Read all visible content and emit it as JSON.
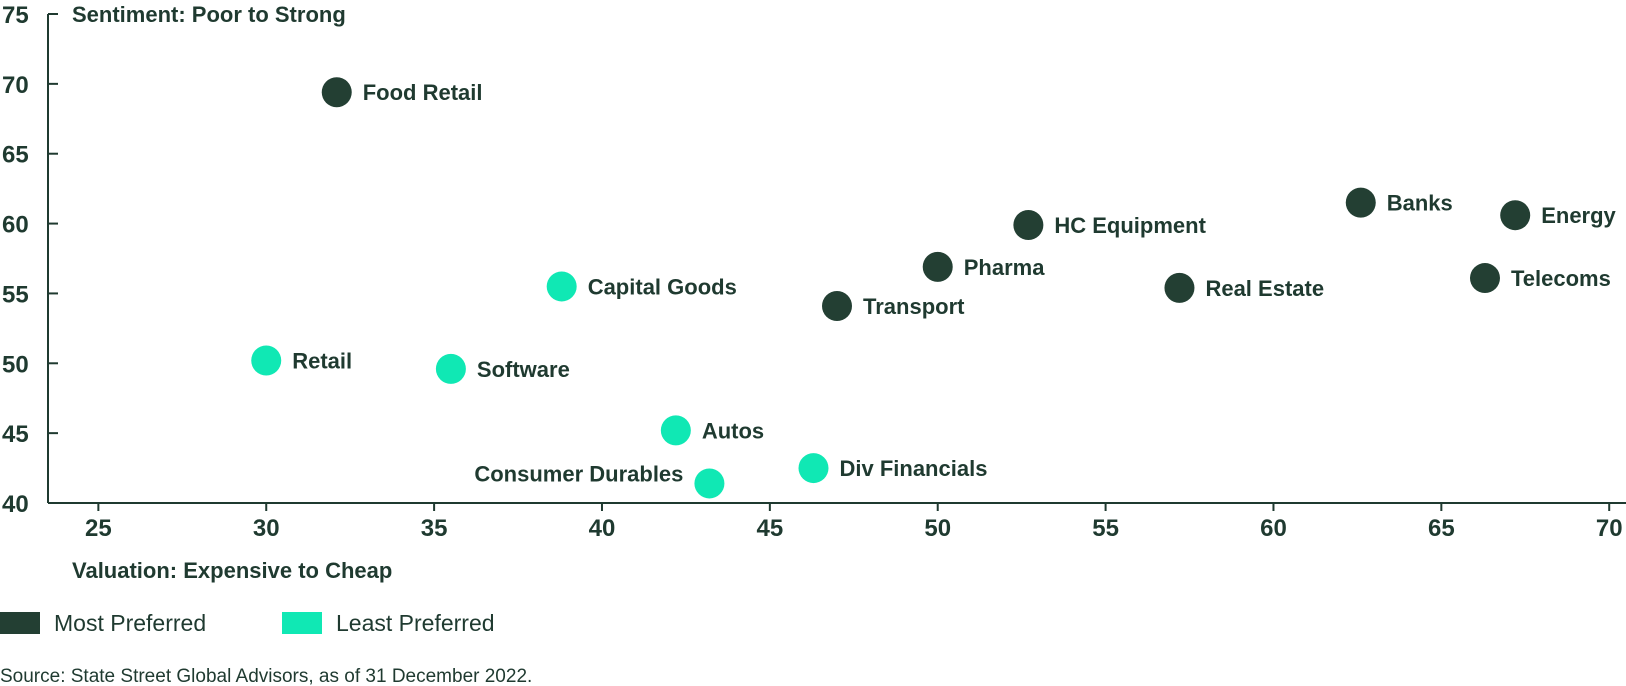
{
  "chart_data": {
    "type": "scatter",
    "xlabel": "Valuation: Expensive to Cheap",
    "ylabel": "Sentiment: Poor to Strong",
    "xlim": [
      23.5,
      70.5
    ],
    "ylim": [
      40,
      75
    ],
    "xticks": [
      25,
      30,
      35,
      40,
      45,
      50,
      55,
      60,
      65,
      70
    ],
    "yticks": [
      40,
      45,
      50,
      55,
      60,
      65,
      70,
      75
    ],
    "grid": false,
    "legend_placement": "bottom-left",
    "series": [
      {
        "name": "Most Preferred",
        "color": "#233f33",
        "points": [
          {
            "label": "Food Retail",
            "x": 32.1,
            "y": 69.4,
            "label_pos": "right"
          },
          {
            "label": "HC Equipment",
            "x": 52.7,
            "y": 59.9,
            "label_pos": "right"
          },
          {
            "label": "Banks",
            "x": 62.6,
            "y": 61.5,
            "label_pos": "right"
          },
          {
            "label": "Energy",
            "x": 67.2,
            "y": 60.6,
            "label_pos": "right"
          },
          {
            "label": "Pharma",
            "x": 50.0,
            "y": 56.9,
            "label_pos": "right"
          },
          {
            "label": "Transport",
            "x": 47.0,
            "y": 54.1,
            "label_pos": "right"
          },
          {
            "label": "Real Estate",
            "x": 57.2,
            "y": 55.4,
            "label_pos": "right"
          },
          {
            "label": "Telecoms",
            "x": 66.3,
            "y": 56.1,
            "label_pos": "right"
          }
        ]
      },
      {
        "name": "Least Preferred",
        "color": "#10e8b4",
        "points": [
          {
            "label": "Capital Goods",
            "x": 38.8,
            "y": 55.5,
            "label_pos": "right"
          },
          {
            "label": "Retail",
            "x": 30.0,
            "y": 50.2,
            "label_pos": "right"
          },
          {
            "label": "Software",
            "x": 35.5,
            "y": 49.6,
            "label_pos": "right"
          },
          {
            "label": "Autos",
            "x": 42.2,
            "y": 45.2,
            "label_pos": "right"
          },
          {
            "label": "Consumer Durables",
            "x": 43.2,
            "y": 41.4,
            "label_pos": "left"
          },
          {
            "label": "Div Financials",
            "x": 46.3,
            "y": 42.5,
            "label_pos": "right"
          }
        ]
      }
    ]
  },
  "legend": {
    "most_label": "Most Preferred",
    "least_label": "Least Preferred"
  },
  "source": "Source: State Street Global Advisors, as of 31 December 2022.",
  "colors": {
    "axis": "#1f3a30",
    "most": "#233f33",
    "least": "#10e8b4"
  }
}
